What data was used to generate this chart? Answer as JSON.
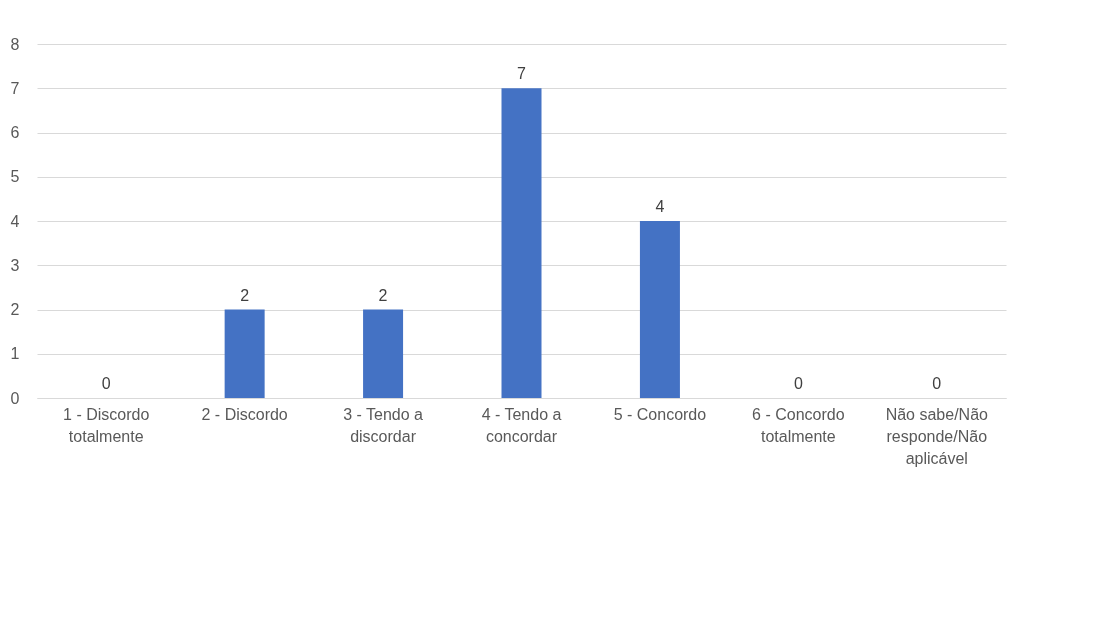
{
  "chart_data": {
    "type": "bar",
    "categories": [
      "1 - Discordo totalmente",
      "2 - Discordo",
      "3 - Tendo a discordar",
      "4 - Tendo a concordar",
      "5 - Concordo",
      "6 - Concordo totalmente",
      "Não sabe/Não responde/Não aplicável"
    ],
    "values": [
      0,
      2,
      2,
      7,
      4,
      0,
      0
    ],
    "color": "#4472c4",
    "ylim": [
      0,
      8
    ],
    "yticks": [
      0,
      1,
      2,
      3,
      4,
      5,
      6,
      7,
      8
    ],
    "grid": "y",
    "data_labels": true
  }
}
